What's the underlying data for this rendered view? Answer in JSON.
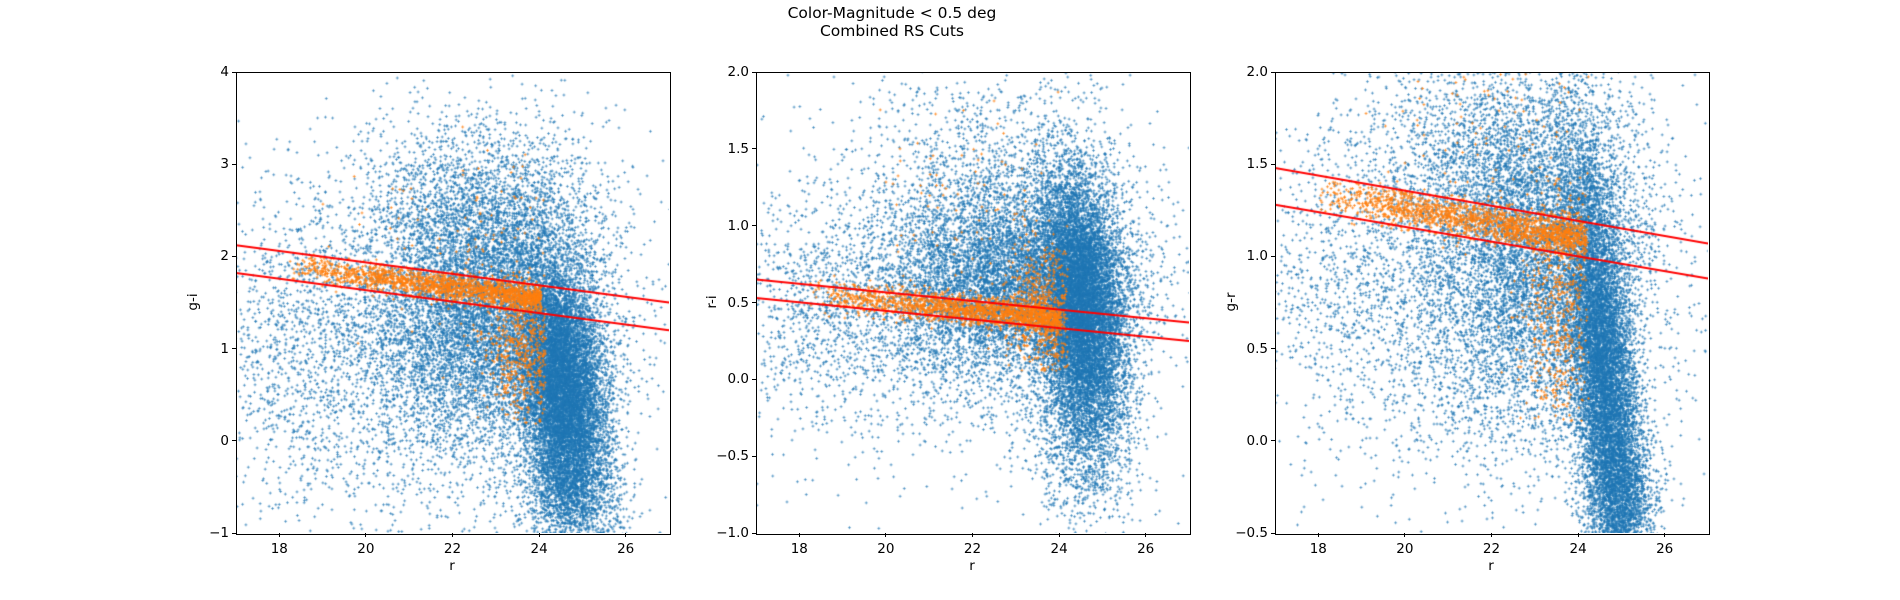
{
  "chart_data": {
    "type": "scatter",
    "suptitle": [
      "Color-Magnitude < 0.5 deg",
      "Combined RS Cuts"
    ],
    "xlabel": "r",
    "xlim": [
      17,
      27
    ],
    "xticks": {
      "values": [
        18,
        20,
        22,
        24,
        26
      ],
      "labels": [
        "18",
        "20",
        "22",
        "24",
        "26"
      ]
    },
    "marker": "+",
    "marker_size_px": 3,
    "colors": {
      "field_points": "#1f77b4",
      "red_sequence_points": "#ff7f0e",
      "cut_lines": "#ff0000",
      "axes": "#000000"
    },
    "alphas": {
      "field_points": 0.6,
      "red_sequence_points": 0.7
    },
    "legend": "none",
    "grid": false,
    "panels": [
      {
        "ylabel": "g-i",
        "ylim": [
          -1,
          4
        ],
        "yticks": {
          "values": [
            4,
            3,
            2,
            1,
            0,
            -1
          ],
          "labels": [
            "4",
            "3",
            "2",
            "1",
            "0",
            "−1"
          ]
        },
        "red_lines": [
          {
            "x": [
              17,
              27
            ],
            "y": [
              2.12,
              1.5
            ]
          },
          {
            "x": [
              17,
              27
            ],
            "y": [
              1.82,
              1.2
            ]
          }
        ],
        "blue_clusters": [
          {
            "n": 2800,
            "cx": 21.0,
            "cy": 1.0,
            "sx": 2.5,
            "sy": 1.0
          },
          {
            "n": 500,
            "cx": 18.2,
            "cy": 1.1,
            "sx": 0.9,
            "sy": 0.8
          },
          {
            "n": 3000,
            "cx": 22.7,
            "cy": 2.35,
            "sx": 1.4,
            "sy": 0.6
          },
          {
            "n": 5500,
            "cx": 22.8,
            "cy": 1.2,
            "sx": 1.4,
            "sy": 0.65
          },
          {
            "n": 9500,
            "cx": 24.55,
            "cy": 0.55,
            "sx": 0.5,
            "sy": 0.7,
            "corr": -0.3
          },
          {
            "n": 1200,
            "cx": 24.7,
            "cy": -0.55,
            "sx": 0.6,
            "sy": 0.35
          }
        ],
        "orange_clusters": [
          {
            "type": "band",
            "n": 1700,
            "x0": 18.2,
            "x1": 24.05,
            "y0": 1.9,
            "y1": 1.54,
            "spread": 0.07,
            "bias": 1.7
          },
          {
            "n": 550,
            "cx": 23.7,
            "cy": 1.0,
            "sx": 0.45,
            "sy": 0.42,
            "clip_x": [
              21.8,
              24.15
            ],
            "clip_y": [
              0.15,
              1.85
            ]
          },
          {
            "n": 120,
            "cx": 22.5,
            "cy": 2.2,
            "sx": 1.5,
            "sy": 0.6,
            "clip_x": [
              19,
              24.15
            ]
          }
        ]
      },
      {
        "ylabel": "r-i",
        "ylim": [
          -1,
          2
        ],
        "yticks": {
          "values": [
            2.0,
            1.5,
            1.0,
            0.5,
            0.0,
            -0.5,
            -1.0
          ],
          "labels": [
            "2.0",
            "1.5",
            "1.0",
            "0.5",
            "0.0",
            "−0.5",
            "−1.0"
          ]
        },
        "red_lines": [
          {
            "x": [
              17,
              27
            ],
            "y": [
              0.65,
              0.37
            ]
          },
          {
            "x": [
              17,
              27
            ],
            "y": [
              0.53,
              0.25
            ]
          }
        ],
        "blue_clusters": [
          {
            "n": 2500,
            "cx": 21.3,
            "cy": 0.5,
            "sx": 2.5,
            "sy": 0.5
          },
          {
            "n": 450,
            "cx": 18.3,
            "cy": 0.5,
            "sx": 0.9,
            "sy": 0.3
          },
          {
            "n": 1500,
            "cx": 22.6,
            "cy": 1.25,
            "sx": 1.6,
            "sy": 0.4
          },
          {
            "n": 5500,
            "cx": 22.9,
            "cy": 0.6,
            "sx": 1.4,
            "sy": 0.3
          },
          {
            "n": 9500,
            "cx": 24.5,
            "cy": 0.5,
            "sx": 0.5,
            "sy": 0.42,
            "corr": -0.2
          },
          {
            "n": 1300,
            "cx": 24.6,
            "cy": -0.3,
            "sx": 0.6,
            "sy": 0.35
          }
        ],
        "orange_clusters": [
          {
            "type": "band",
            "n": 1700,
            "x0": 18.2,
            "x1": 24.05,
            "y0": 0.56,
            "y1": 0.39,
            "spread": 0.048,
            "bias": 1.7
          },
          {
            "n": 500,
            "cx": 23.7,
            "cy": 0.45,
            "sx": 0.45,
            "sy": 0.22,
            "clip_x": [
              21.8,
              24.2
            ],
            "clip_y": [
              0.05,
              0.85
            ]
          },
          {
            "n": 100,
            "cx": 22.5,
            "cy": 1.1,
            "sx": 1.5,
            "sy": 0.35,
            "clip_x": [
              19,
              24.2
            ]
          }
        ]
      },
      {
        "ylabel": "g-r",
        "ylim": [
          -0.5,
          2
        ],
        "yticks": {
          "values": [
            2.0,
            1.5,
            1.0,
            0.5,
            0.0,
            -0.5
          ],
          "labels": [
            "2.0",
            "1.5",
            "1.0",
            "0.5",
            "0.0",
            "−0.5"
          ]
        },
        "red_lines": [
          {
            "x": [
              17,
              27
            ],
            "y": [
              1.48,
              1.07
            ]
          },
          {
            "x": [
              17,
              27
            ],
            "y": [
              1.28,
              0.88
            ]
          }
        ],
        "blue_clusters": [
          {
            "n": 2500,
            "cx": 21.3,
            "cy": 0.85,
            "sx": 2.5,
            "sy": 0.55
          },
          {
            "n": 450,
            "cx": 18.5,
            "cy": 0.9,
            "sx": 1.0,
            "sy": 0.45
          },
          {
            "n": 2200,
            "cx": 22.4,
            "cy": 1.5,
            "sx": 1.5,
            "sy": 0.35
          },
          {
            "n": 5000,
            "cx": 23.0,
            "cy": 0.9,
            "sx": 1.3,
            "sy": 0.45
          },
          {
            "n": 9500,
            "cx": 24.6,
            "cy": 0.35,
            "sx": 0.45,
            "sy": 0.6,
            "corr": -0.55
          },
          {
            "n": 1300,
            "cx": 25.0,
            "cy": -0.35,
            "sx": 0.45,
            "sy": 0.22
          }
        ],
        "orange_clusters": [
          {
            "type": "band",
            "n": 1700,
            "x0": 18.0,
            "x1": 24.2,
            "y0": 1.34,
            "y1": 1.09,
            "spread": 0.05,
            "bias": 1.6
          },
          {
            "n": 550,
            "cx": 23.6,
            "cy": 0.75,
            "sx": 0.45,
            "sy": 0.38,
            "clip_x": [
              21.5,
              24.25
            ],
            "clip_y": [
              0.1,
              1.45
            ]
          },
          {
            "n": 100,
            "cx": 22.3,
            "cy": 1.7,
            "sx": 1.6,
            "sy": 0.3,
            "clip_x": [
              19,
              24.25
            ]
          }
        ]
      }
    ]
  }
}
